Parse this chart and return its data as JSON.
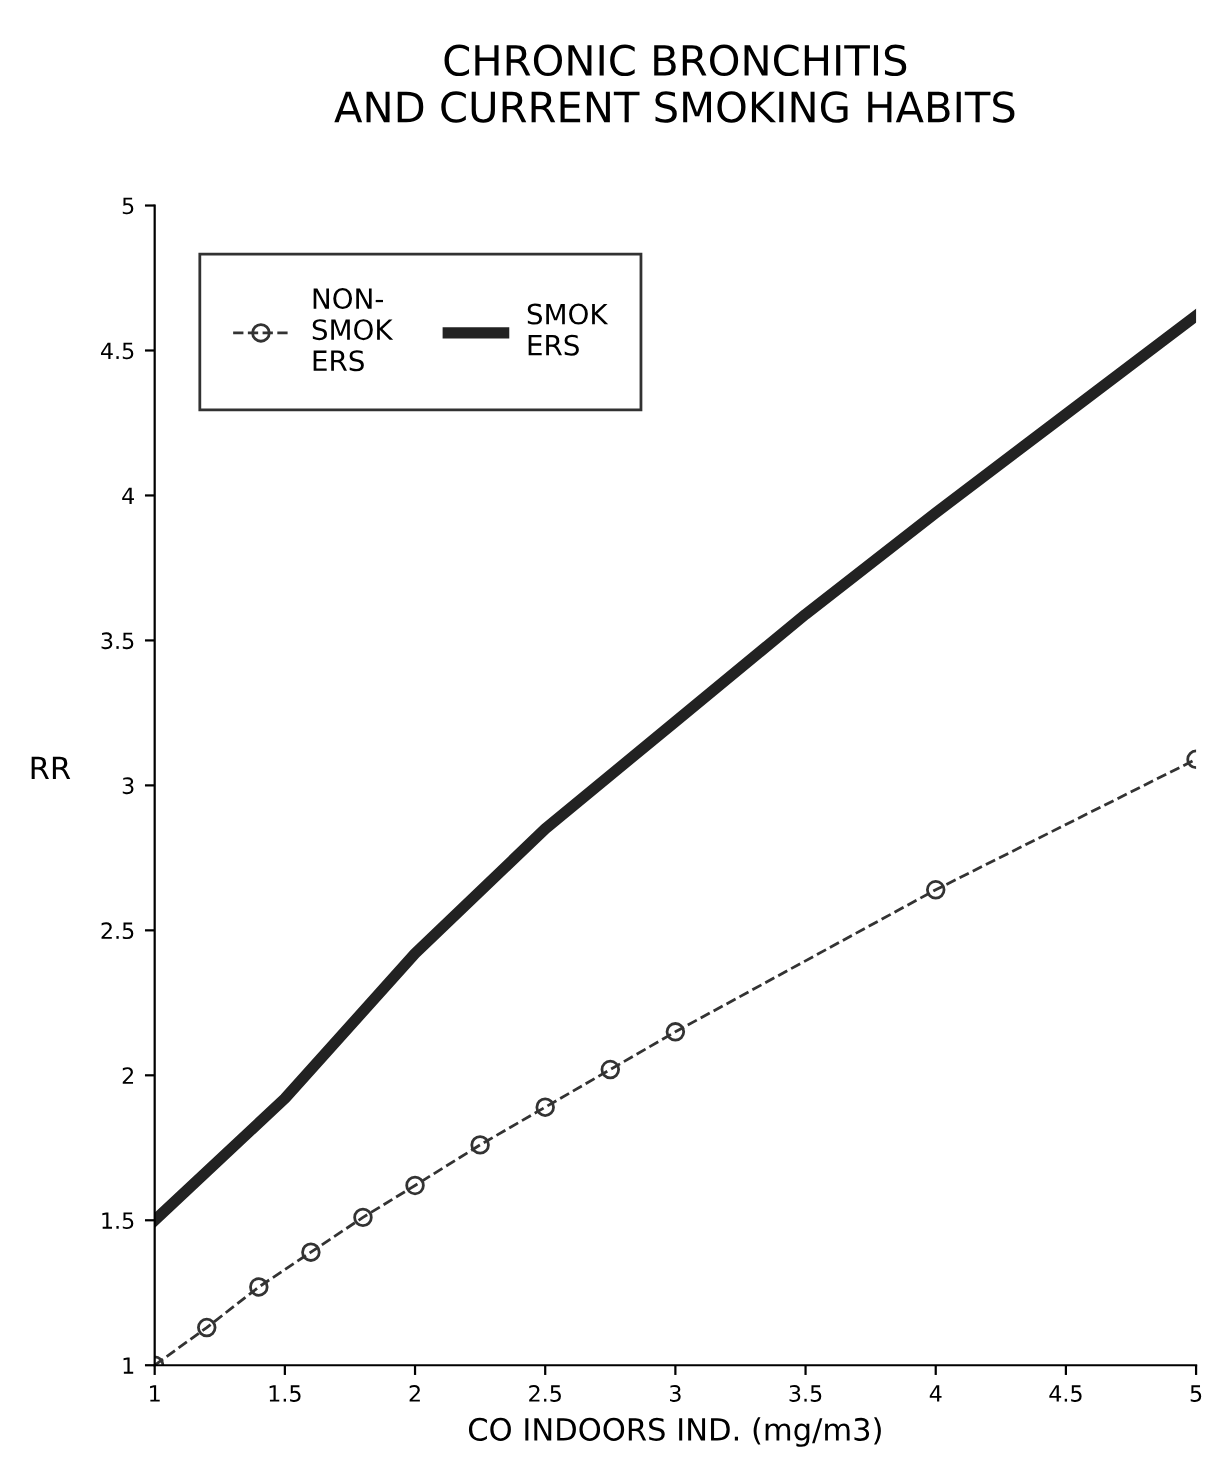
{
  "chart_data": {
    "type": "line",
    "title": "CHRONIC BRONCHITIS\nAND CURRENT SMOKING HABITS",
    "xlabel": "CO INDOORS IND. (mg/m3)",
    "ylabel": "RR",
    "xlim": [
      1,
      5
    ],
    "ylim": [
      1,
      5
    ],
    "xticks": [
      1,
      1.5,
      2,
      2.5,
      3,
      3.5,
      4,
      4.5,
      5
    ],
    "yticks": [
      1,
      1.5,
      2,
      2.5,
      3,
      3.5,
      4,
      4.5,
      5
    ],
    "grid": false,
    "legend": "top left",
    "series": [
      {
        "name": "NON-\nSMOK\nERS",
        "color": "#333333",
        "marker": "circle",
        "line_style": "dashed",
        "x": [
          1,
          1.2,
          1.4,
          1.6,
          1.8,
          2,
          2.25,
          2.5,
          2.75,
          3,
          4,
          5
        ],
        "values": [
          1,
          1.13,
          1.27,
          1.39,
          1.51,
          1.62,
          1.76,
          1.89,
          2.02,
          2.15,
          2.64,
          3.09
        ]
      },
      {
        "name": "SMOK\nERS",
        "color": "#222222",
        "marker": "none",
        "line_style": "solid",
        "x": [
          1,
          1.5,
          2,
          2.5,
          3,
          3.5,
          4,
          4.5,
          5
        ],
        "values": [
          1.5,
          1.92,
          2.42,
          2.85,
          3.22,
          3.59,
          3.94,
          4.28,
          4.62
        ]
      }
    ]
  }
}
